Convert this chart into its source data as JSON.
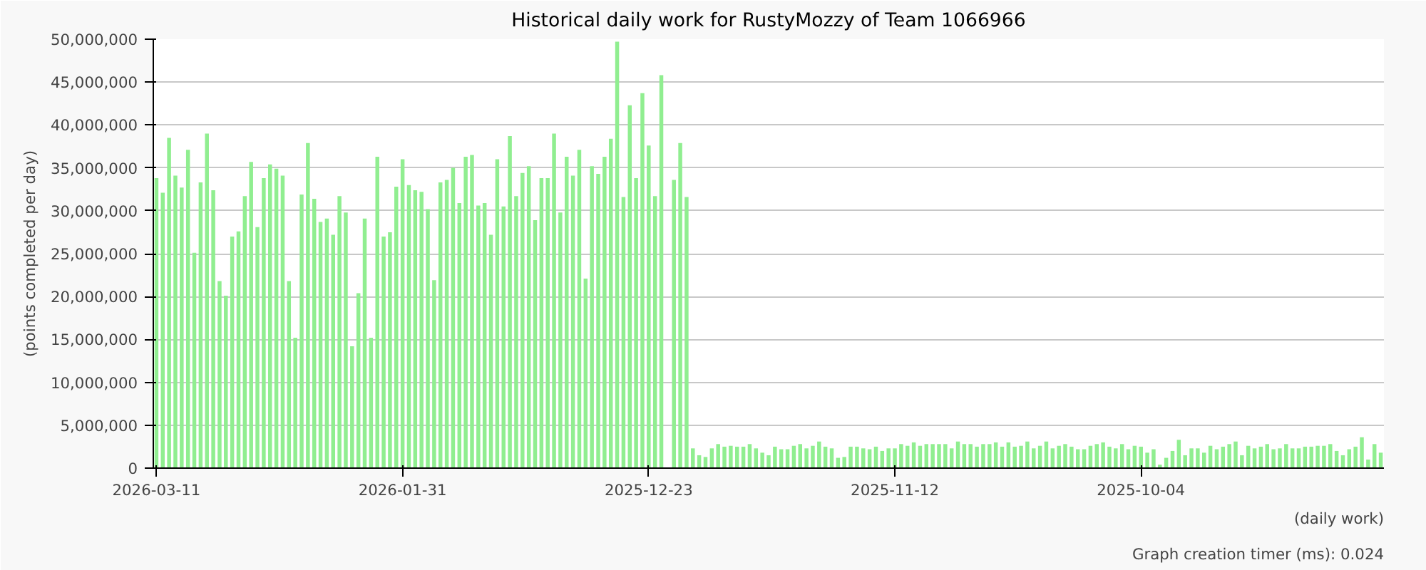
{
  "chart_data": {
    "type": "bar",
    "title": "Historical daily work for RustyMozzy of Team 1066966",
    "xlabel": "(daily work)",
    "ylabel": "(points completed per day)",
    "annotations": [
      "Graph creation timer (ms): 0.024"
    ],
    "categories": [
      "2026-03-11",
      null,
      null,
      null,
      null,
      null,
      null,
      null,
      null,
      null,
      null,
      null,
      null,
      null,
      null,
      null,
      null,
      null,
      null,
      null,
      null,
      null,
      null,
      null,
      null,
      null,
      null,
      null,
      null,
      null,
      null,
      null,
      null,
      null,
      null,
      null,
      null,
      null,
      null,
      "2026-01-31",
      null,
      null,
      null,
      null,
      null,
      null,
      null,
      null,
      null,
      null,
      null,
      null,
      null,
      null,
      null,
      null,
      null,
      null,
      null,
      null,
      null,
      null,
      null,
      null,
      null,
      null,
      null,
      null,
      null,
      null,
      null,
      null,
      null,
      null,
      null,
      null,
      null,
      null,
      "2025-12-23",
      null,
      null,
      null,
      null,
      null,
      null,
      null,
      null,
      null,
      null,
      null,
      null,
      null,
      null,
      null,
      null,
      null,
      null,
      null,
      null,
      null,
      null,
      null,
      null,
      null,
      null,
      null,
      null,
      null,
      null,
      null,
      null,
      null,
      null,
      null,
      null,
      null,
      null,
      "2025-11-12",
      null,
      null,
      null,
      null,
      null,
      null,
      null,
      null,
      null,
      null,
      null,
      null,
      null,
      null,
      null,
      null,
      null,
      null,
      null,
      null,
      null,
      null,
      null,
      null,
      null,
      null,
      null,
      null,
      null,
      null,
      null,
      null,
      null,
      null,
      null,
      null,
      null,
      null,
      "2025-10-04",
      null,
      null,
      null,
      null,
      null,
      null,
      null,
      null,
      null,
      null,
      null,
      null,
      null,
      null,
      null,
      null,
      null,
      null,
      null,
      null,
      null,
      null,
      null,
      null,
      null,
      null,
      null,
      null,
      null,
      null,
      null,
      null,
      null,
      null,
      null,
      null,
      null,
      null
    ],
    "series": [
      {
        "color": "#90ee90",
        "values": [
          33800000,
          32100000,
          38500000,
          34100000,
          32700000,
          37100000,
          25100000,
          33300000,
          39000000,
          32400000,
          21800000,
          20100000,
          27000000,
          27600000,
          31700000,
          35700000,
          28100000,
          33800000,
          35400000,
          34900000,
          34100000,
          21800000,
          15200000,
          31900000,
          37900000,
          31400000,
          28700000,
          29100000,
          27200000,
          31700000,
          29800000,
          14200000,
          20400000,
          29100000,
          15200000,
          36300000,
          27000000,
          27500000,
          32800000,
          36000000,
          33000000,
          32400000,
          32200000,
          30200000,
          21900000,
          33300000,
          33600000,
          35000000,
          30900000,
          36300000,
          36500000,
          30600000,
          30900000,
          27200000,
          36000000,
          30500000,
          38700000,
          31700000,
          34400000,
          35200000,
          28900000,
          33800000,
          33800000,
          39000000,
          29800000,
          36300000,
          34100000,
          37100000,
          22100000,
          35200000,
          34300000,
          36300000,
          38400000,
          49700000,
          31600000,
          42300000,
          33800000,
          43700000,
          37600000,
          31700000,
          45800000,
          null,
          33600000,
          37900000,
          31600000,
          2300000,
          1500000,
          1300000,
          2300000,
          2800000,
          2500000,
          2600000,
          2500000,
          2500000,
          2800000,
          2300000,
          1800000,
          1500000,
          2500000,
          2200000,
          2200000,
          2600000,
          2800000,
          2300000,
          2600000,
          3100000,
          2500000,
          2300000,
          1200000,
          1300000,
          2500000,
          2500000,
          2300000,
          2200000,
          2500000,
          2000000,
          2300000,
          2300000,
          2800000,
          2600000,
          3000000,
          2600000,
          2800000,
          2800000,
          2800000,
          2800000,
          2300000,
          3100000,
          2800000,
          2800000,
          2500000,
          2800000,
          2800000,
          3000000,
          2500000,
          3000000,
          2500000,
          2600000,
          3100000,
          2300000,
          2600000,
          3100000,
          2300000,
          2600000,
          2800000,
          2500000,
          2200000,
          2200000,
          2600000,
          2800000,
          3000000,
          2500000,
          2300000,
          2800000,
          2200000,
          2600000,
          2500000,
          1800000,
          2200000,
          400000,
          1200000,
          2000000,
          3300000,
          1500000,
          2300000,
          2300000,
          1800000,
          2600000,
          2200000,
          2500000,
          2800000,
          3100000,
          1500000,
          2600000,
          2300000,
          2500000,
          2800000,
          2200000,
          2300000,
          2800000,
          2300000,
          2300000,
          2500000,
          2500000,
          2600000,
          2600000,
          2800000,
          2000000,
          1500000,
          2200000,
          2500000,
          3600000,
          1000000,
          2800000,
          1800000
        ]
      }
    ],
    "ylim": [
      0,
      50000000
    ],
    "yticks": [
      {
        "value": 0,
        "label": "0"
      },
      {
        "value": 5000000,
        "label": "5,000,000"
      },
      {
        "value": 10000000,
        "label": "10,000,000"
      },
      {
        "value": 15000000,
        "label": "15,000,000"
      },
      {
        "value": 20000000,
        "label": "20,000,000"
      },
      {
        "value": 25000000,
        "label": "25,000,000"
      },
      {
        "value": 30000000,
        "label": "30,000,000"
      },
      {
        "value": 35000000,
        "label": "35,000,000"
      },
      {
        "value": 40000000,
        "label": "40,000,000"
      },
      {
        "value": 45000000,
        "label": "45,000,000"
      },
      {
        "value": 50000000,
        "label": "50,000,000"
      }
    ],
    "grid": "y"
  }
}
